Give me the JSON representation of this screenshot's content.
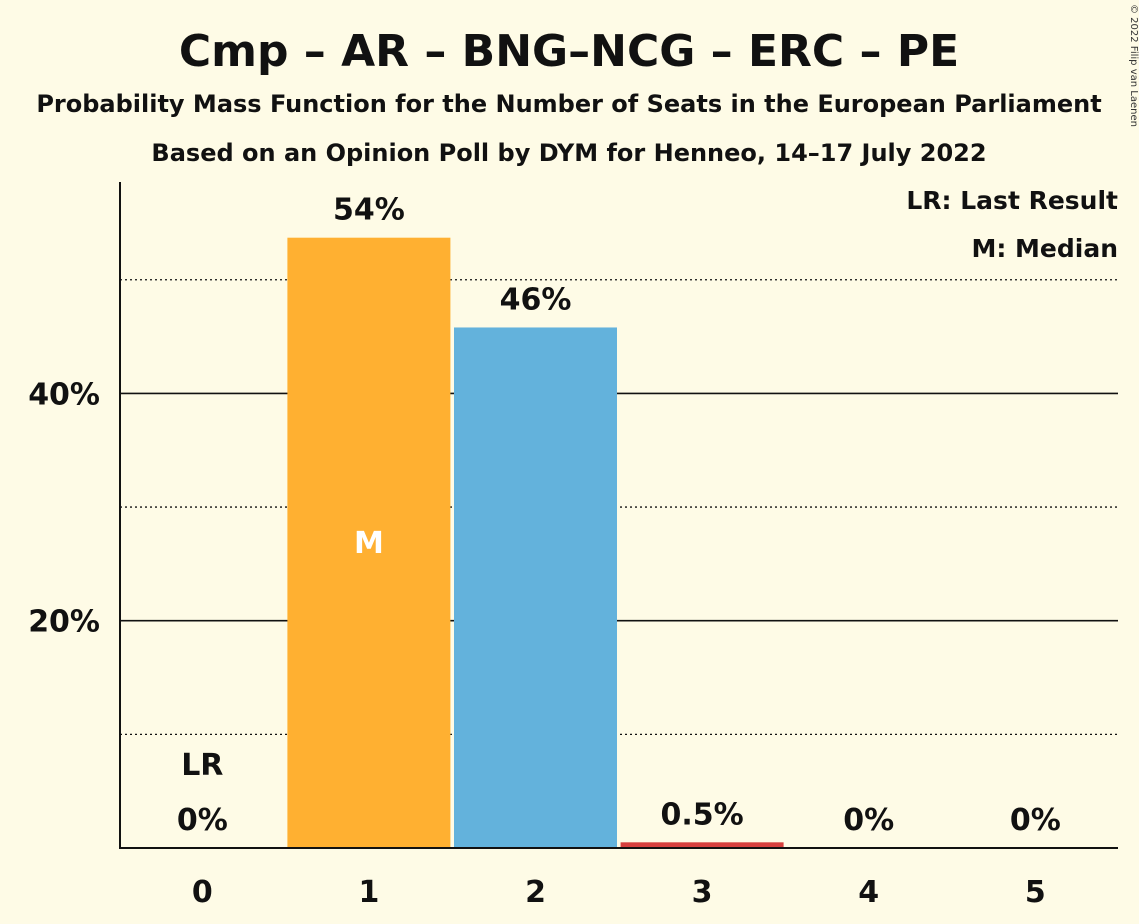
{
  "chart_data": {
    "type": "bar",
    "title": "Cmp – AR – BNG–NCG – ERC – PE",
    "subtitle1": "Probability Mass Function for the Number of Seats in the European Parliament",
    "subtitle2": "Based on an Opinion Poll by DYM for Henneo, 14–17 July 2022",
    "copyright": "© 2022 Filip van Laenen",
    "categories": [
      "0",
      "1",
      "2",
      "3",
      "4",
      "5"
    ],
    "values": [
      0,
      53.7,
      45.8,
      0.5,
      0,
      0
    ],
    "value_labels": [
      "0%",
      "54%",
      "46%",
      "0.5%",
      "0%",
      "0%"
    ],
    "bar_colors": [
      "#ffb031",
      "#ffb031",
      "#63b2dc",
      "#d6403e",
      "#63b2dc",
      "#63b2dc"
    ],
    "ylim": [
      0,
      58.6
    ],
    "yticks": [
      20,
      40
    ],
    "ytick_labels": [
      "20%",
      "40%"
    ],
    "minor_gridlines": [
      10,
      30,
      50
    ],
    "grid": true,
    "last_result": {
      "category": "0",
      "label": "LR"
    },
    "median": {
      "category": "1",
      "label": "M"
    },
    "legend": {
      "placement": "top-right",
      "items": [
        "LR: Last Result",
        "M: Median"
      ]
    }
  }
}
